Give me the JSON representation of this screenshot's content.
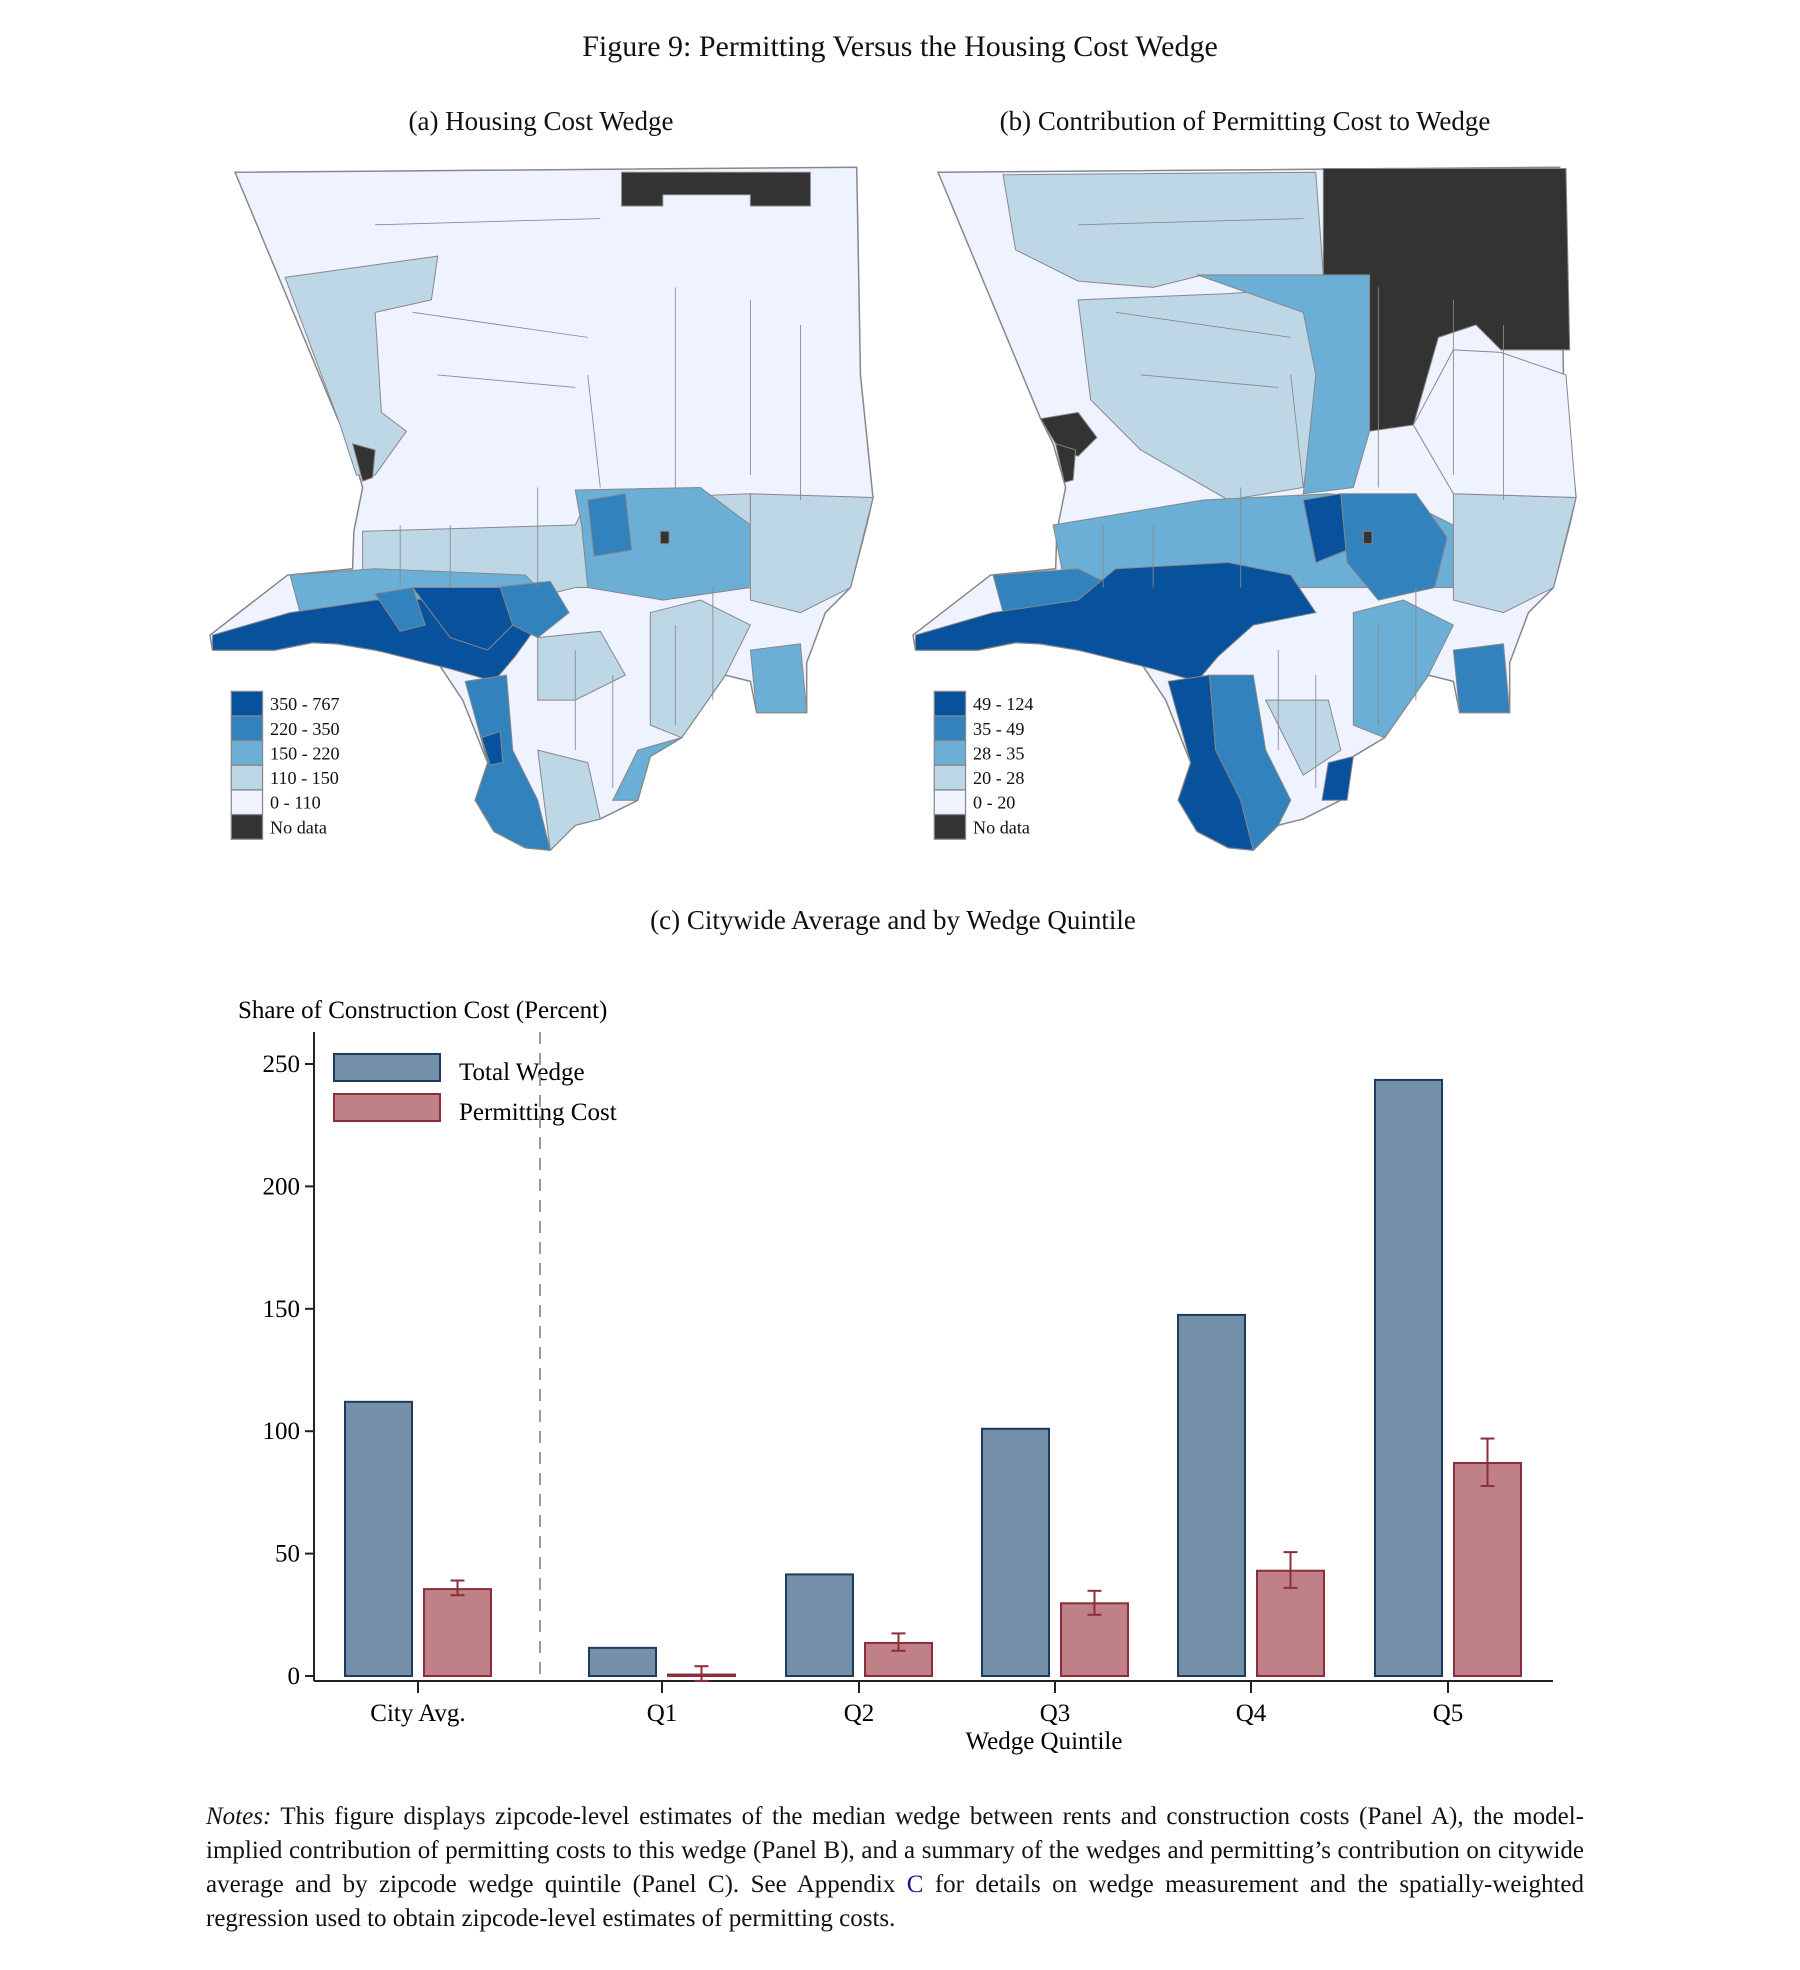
{
  "figure": {
    "title": "Figure 9:  Permitting Versus the Housing Cost Wedge"
  },
  "panel_a": {
    "title": "(a) Housing Cost Wedge",
    "legend": [
      "350 - 767",
      "220 - 350",
      "150 - 220",
      "110 - 150",
      "0 - 110",
      "No data"
    ]
  },
  "panel_b": {
    "title": "(b) Contribution of Permitting Cost to Wedge",
    "legend": [
      "49 - 124",
      "35 - 49",
      "28 - 35",
      "20 - 28",
      "0 - 20",
      "No data"
    ]
  },
  "colors": {
    "class5": "#08519c",
    "class4": "#3182bd",
    "class3": "#6baed6",
    "class2": "#bdd7e7",
    "class1": "#eff3ff",
    "no_data": "#333333",
    "total_wedge": "#7490a8",
    "permitting_cost": "#bf8187"
  },
  "panel_c": {
    "title": "(c) Citywide Average and by Wedge Quintile"
  },
  "chart_data": {
    "type": "bar",
    "title": "(c) Citywide Average and by Wedge Quintile",
    "ylabel": "Share of Construction Cost (Percent)",
    "xlabel": "Wedge Quintile",
    "categories": [
      "City Avg.",
      "Q1",
      "Q2",
      "Q3",
      "Q4",
      "Q5"
    ],
    "ylim": [
      0,
      260
    ],
    "yticks": [
      "0",
      "50",
      "100",
      "150",
      "200",
      "250"
    ],
    "grid": false,
    "legend_position": "top-left",
    "separator_after_category": "City Avg.",
    "series": [
      {
        "name": "Total Wedge",
        "values": [
          112,
          11.5,
          41.5,
          101,
          147.5,
          243.5
        ]
      },
      {
        "name": "Permitting Cost",
        "values": [
          35.5,
          0.6,
          13.5,
          29.7,
          43,
          87
        ],
        "error_low": [
          33,
          -2,
          10.3,
          25,
          36,
          77.6
        ],
        "error_high": [
          39,
          4,
          17.4,
          34.8,
          50.6,
          97
        ]
      }
    ]
  },
  "notes": {
    "label": "Notes:",
    "text_before": " This figure displays zipcode-level estimates of the median wedge between rents and construction costs (Panel A), the model-implied contribution of permitting costs to this wedge (Panel B), and a summary of the wedges and permitting’s contribution on citywide average and by zipcode wedge quintile (Panel C). See Appendix ",
    "link": "C",
    "text_after": " for details on wedge measurement and the spatially-weighted regression used to obtain zipcode-level estimates of permitting costs."
  }
}
